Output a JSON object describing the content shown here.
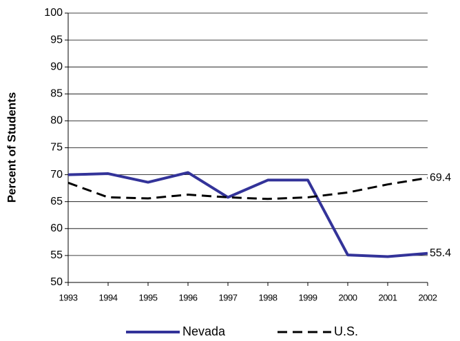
{
  "chart_data": {
    "type": "line",
    "ylabel": "Percent of Students",
    "x": [
      1993,
      1994,
      1995,
      1996,
      1997,
      1998,
      1999,
      2000,
      2001,
      2002
    ],
    "xlim": [
      1993,
      2002
    ],
    "xticks": [
      1993,
      1994,
      1995,
      1996,
      1997,
      1998,
      1999,
      2000,
      2001,
      2002
    ],
    "ylim": [
      50,
      100
    ],
    "yticks": [
      50,
      55,
      60,
      65,
      70,
      75,
      80,
      85,
      90,
      95,
      100
    ],
    "grid": true,
    "legend": "bottom",
    "series": [
      {
        "name": "Nevada",
        "color": "#333399",
        "dash": false,
        "values": [
          70.0,
          70.2,
          68.6,
          70.4,
          65.8,
          69.0,
          69.0,
          55.1,
          54.8,
          55.4
        ]
      },
      {
        "name": "U.S.",
        "color": "#000000",
        "dash": true,
        "values": [
          68.5,
          65.8,
          65.6,
          66.3,
          65.8,
          65.5,
          65.8,
          66.7,
          68.2,
          69.4
        ]
      }
    ]
  }
}
